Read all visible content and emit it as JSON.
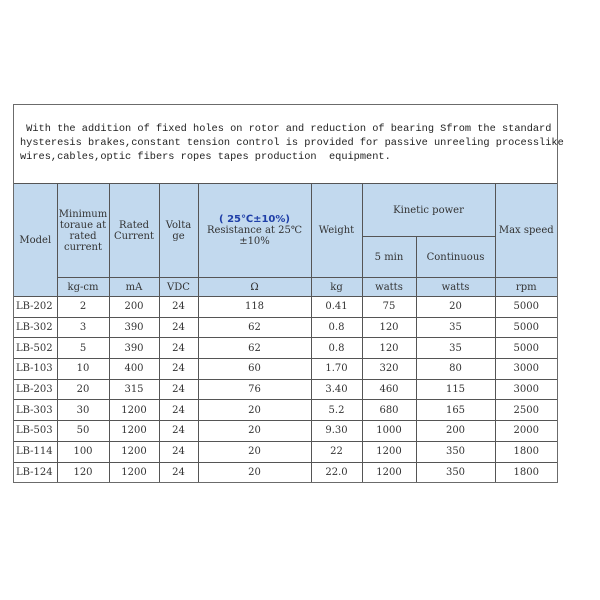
{
  "description": [
    " With the addition of fixed holes on rotor and reduction of bearing Sfrom the standard",
    "hysteresis brakes,constant tension control is provided for passive unreeling processlike",
    "wires,cables,optic fibers ropes tapes production  equipment."
  ],
  "header": {
    "model": "Model",
    "torque": "Minimum toraue at rated current",
    "current": "Rated Current",
    "voltage": "Volta ge",
    "resistance_note": "( 25℃±10%)",
    "resistance": "Resistance at 25℃ ±10%",
    "weight": "Weight",
    "kinetic": "Kinetic power",
    "five_min": "5 min",
    "continuous": "Continuous",
    "max_speed": "Max speed"
  },
  "units": [
    "kg-cm",
    "mA",
    "VDC",
    "Ω",
    "kg",
    "watts",
    "watts",
    "rpm"
  ],
  "rows": [
    [
      "LB-202",
      "2",
      "200",
      "24",
      "118",
      "0.41",
      "75",
      "20",
      "5000"
    ],
    [
      "LB-302",
      "3",
      "390",
      "24",
      "62",
      "0.8",
      "120",
      "35",
      "5000"
    ],
    [
      "LB-502",
      "5",
      "390",
      "24",
      "62",
      "0.8",
      "120",
      "35",
      "5000"
    ],
    [
      "LB-103",
      "10",
      "400",
      "24",
      "60",
      "1.70",
      "320",
      "80",
      "3000"
    ],
    [
      "LB-203",
      "20",
      "315",
      "24",
      "76",
      "3.40",
      "460",
      "115",
      "3000"
    ],
    [
      "LB-303",
      "30",
      "1200",
      "24",
      "20",
      "5.2",
      "680",
      "165",
      "2500"
    ],
    [
      "LB-503",
      "50",
      "1200",
      "24",
      "20",
      "9.30",
      "1000",
      "200",
      "2000"
    ],
    [
      "LB-114",
      "100",
      "1200",
      "24",
      "20",
      "22",
      "1200",
      "350",
      "1800"
    ],
    [
      "LB-124",
      "120",
      "1200",
      "24",
      "20",
      "22.0",
      "1200",
      "350",
      "1800"
    ]
  ],
  "colors": {
    "header_bg": "#c2d9ee",
    "note_text": "#1f3fa8"
  }
}
